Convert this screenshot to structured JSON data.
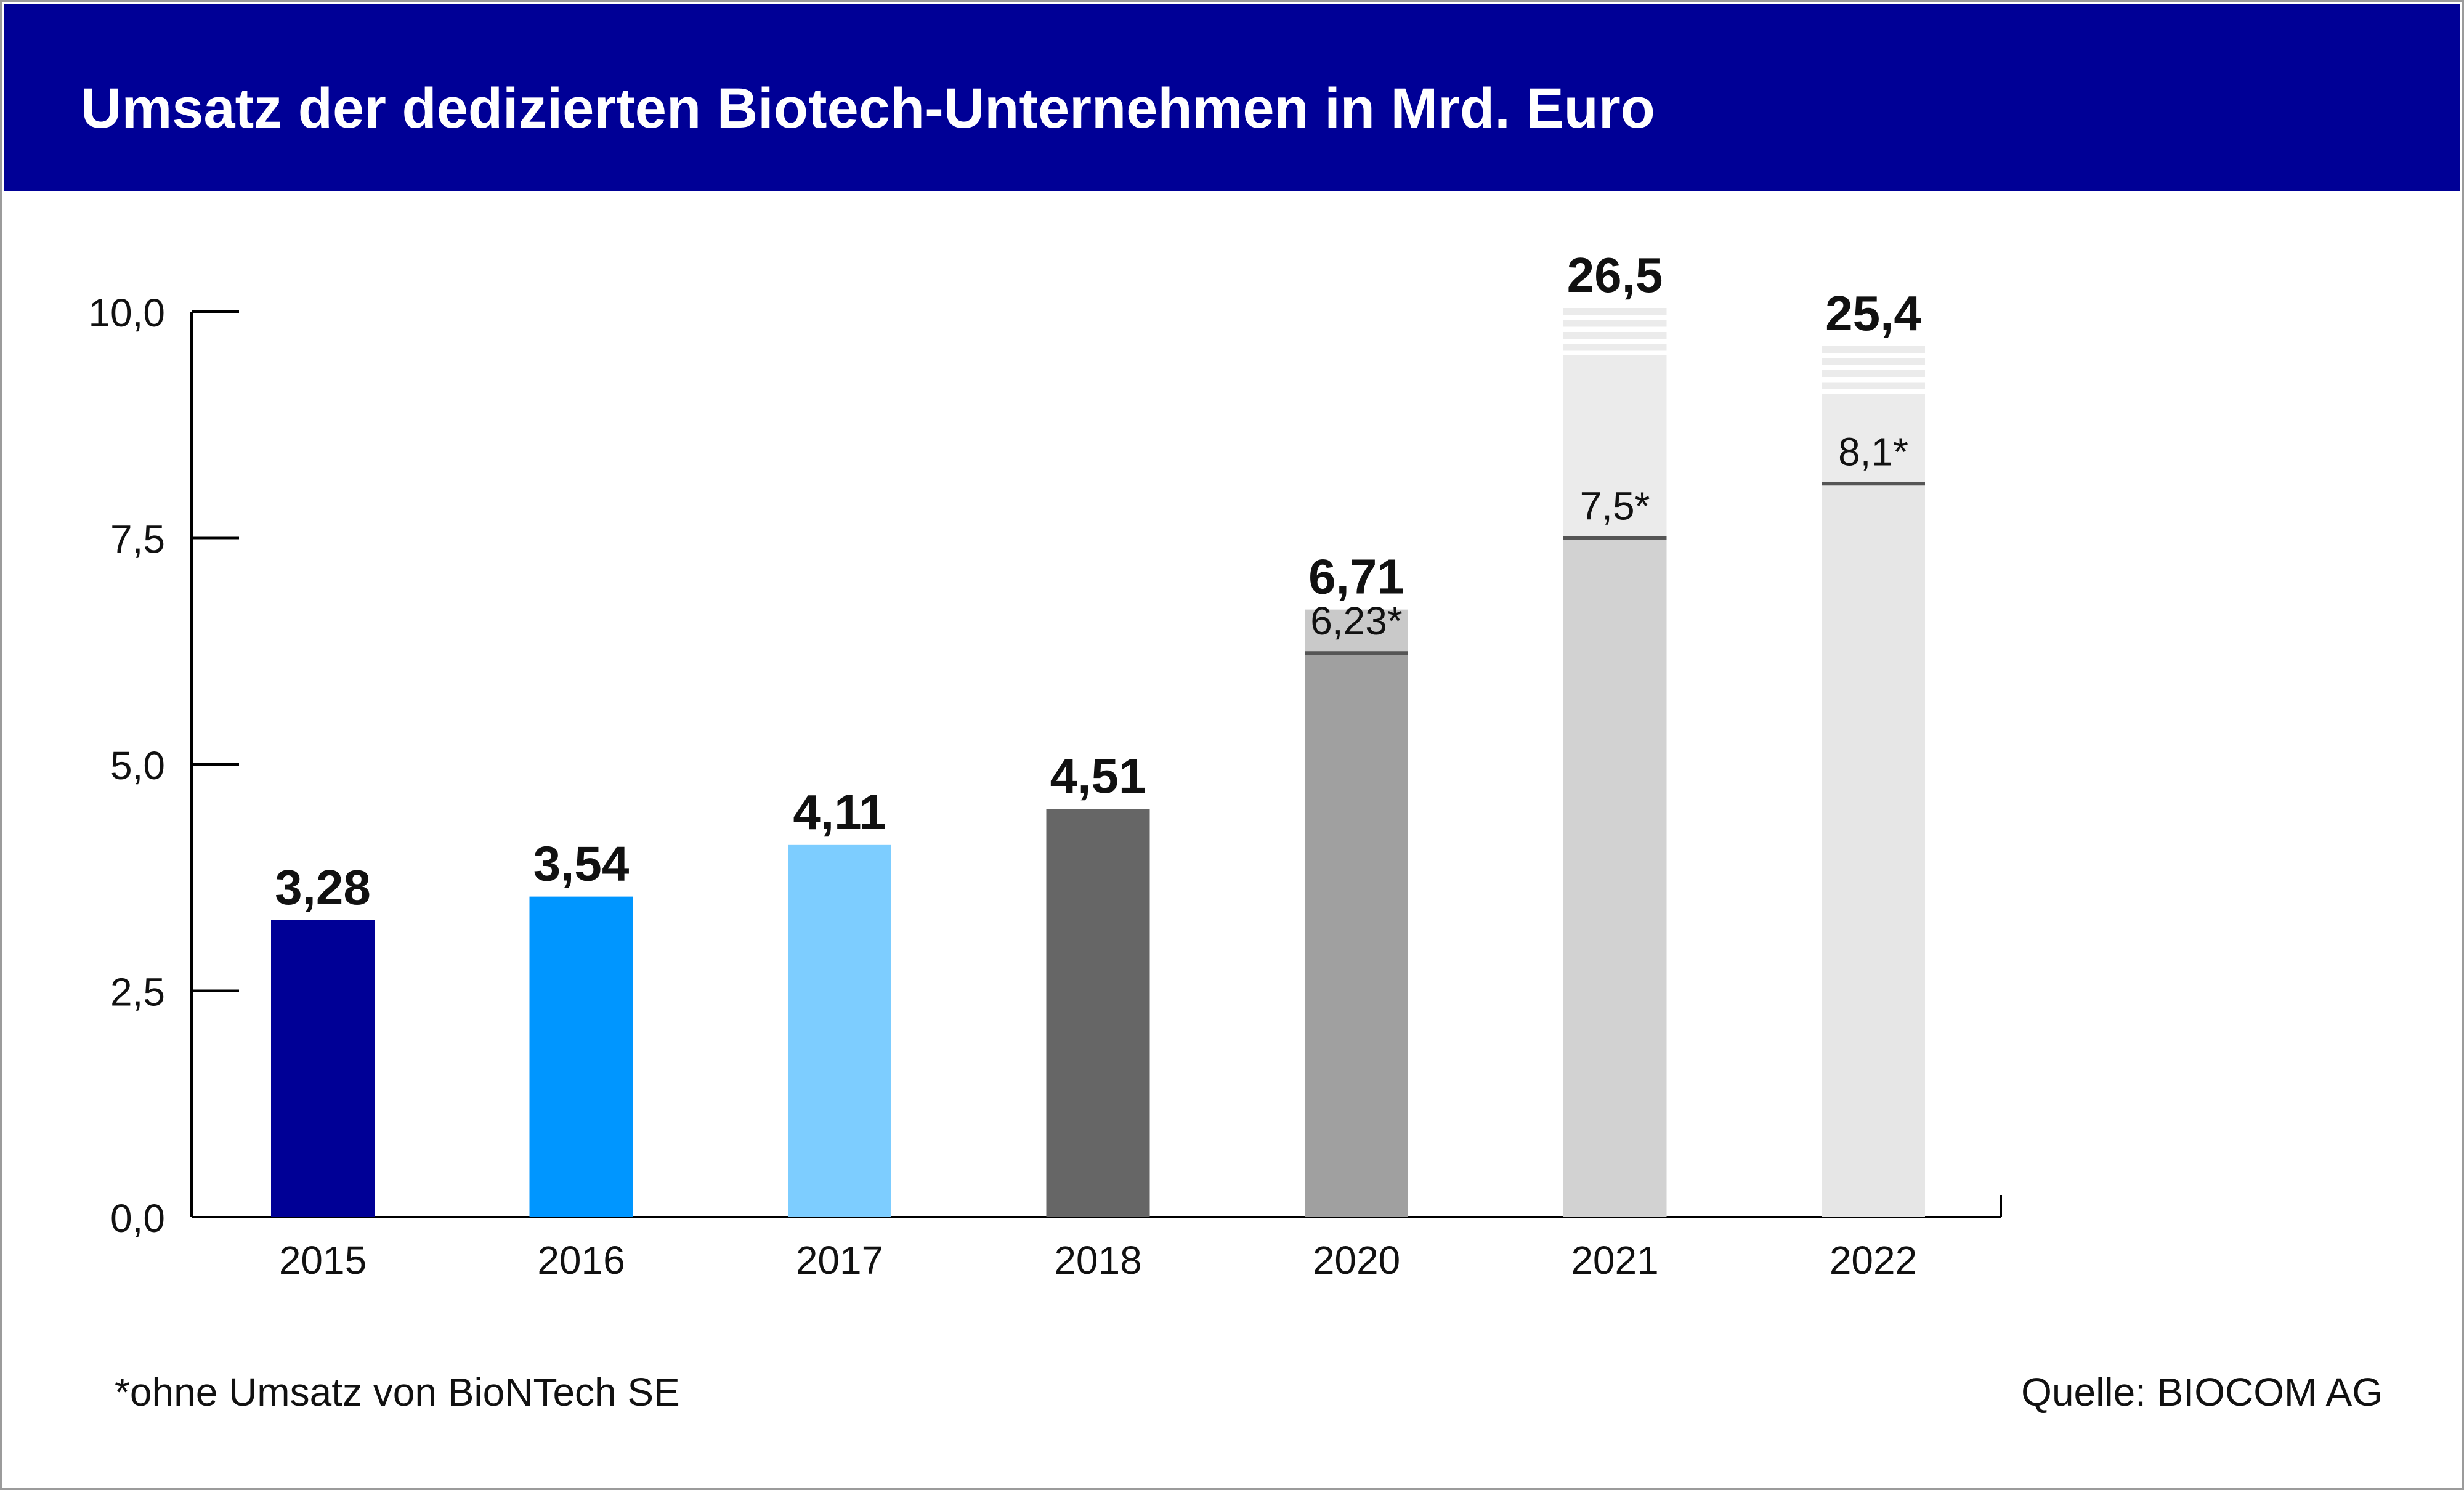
{
  "title": "Umsatz der dedizierten Biotech-Unternehmen in Mrd. Euro",
  "footnote": "*ohne Umsatz von BioNTech SE",
  "source": "Quelle: BIOCOM AG",
  "chart_data": {
    "type": "bar",
    "title": "Umsatz der dedizierten Biotech-Unternehmen in Mrd. Euro",
    "xlabel": "",
    "ylabel": "",
    "ylim": [
      0,
      10
    ],
    "y_axis_broken_top": true,
    "grid": false,
    "y_ticks": [
      "0,0",
      "2,5",
      "5,0",
      "7,5",
      "10,0"
    ],
    "y_tick_values": [
      0,
      2.5,
      5,
      7.5,
      10
    ],
    "categories": [
      "2015",
      "2016",
      "2017",
      "2018",
      "2020",
      "2021",
      "2022"
    ],
    "values": [
      3.28,
      3.54,
      4.11,
      4.51,
      6.71,
      26.5,
      25.4
    ],
    "value_labels": [
      "3,28",
      "3,54",
      "4,11",
      "4,51",
      "6,71",
      "26,5",
      "25,4"
    ],
    "excluding_biontech": [
      null,
      null,
      null,
      null,
      6.23,
      7.5,
      8.1
    ],
    "excluding_biontech_labels": [
      null,
      null,
      null,
      null,
      "6,23*",
      "7,5*",
      "8,1*"
    ],
    "bar_colors": [
      "#000096",
      "#0096ff",
      "#7dcdff",
      "#666666",
      "#a0a0a0",
      "#d2d2d2",
      "#e6e6e6"
    ],
    "top_segment_colors": [
      null,
      null,
      null,
      null,
      "#c9c9c9",
      "#ebebeb",
      "#ebebeb"
    ],
    "marker_color": "#555555",
    "axis_color": "#000000"
  }
}
